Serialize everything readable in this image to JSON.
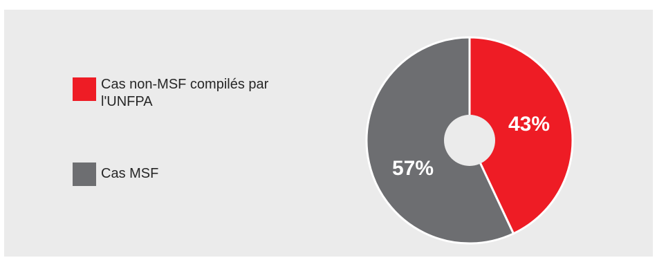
{
  "chart_data": {
    "type": "pie",
    "title": "",
    "categories": [
      "Cas non-MSF compilés par l'UNFPA",
      "Cas MSF"
    ],
    "values": [
      43,
      57
    ],
    "value_labels": [
      "43%",
      "57%"
    ],
    "colors": [
      "#ee1c25",
      "#6d6e71"
    ],
    "hole_color": "#ebebeb",
    "legend_position": "left"
  },
  "legend": [
    {
      "label": "Cas non-MSF compilés par l'UNFPA",
      "color": "#ee1c25"
    },
    {
      "label": "Cas MSF",
      "color": "#6d6e71"
    }
  ]
}
